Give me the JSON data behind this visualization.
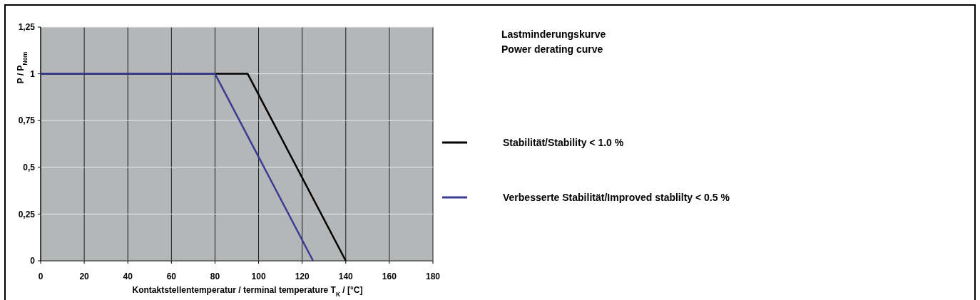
{
  "chart_data": {
    "type": "line",
    "title": "Lastminderungskurve",
    "subtitle": "Power derating curve",
    "xlabel": "Kontaktstellentemperatur / terminal temperature T$_{K}$ / [°C]",
    "ylabel": "P / P$_{Nom}$",
    "xlim": [
      0,
      180
    ],
    "xticks": [
      0,
      20,
      40,
      60,
      80,
      100,
      120,
      140,
      160,
      180
    ],
    "ylim": [
      0,
      1.25
    ],
    "yticks": [
      0,
      {
        "value": 0.25,
        "label": "0,25"
      },
      {
        "value": 0.5,
        "label": "0,5"
      },
      {
        "value": 0.75,
        "label": "0,75"
      },
      1,
      {
        "value": 1.25,
        "label": "1,25"
      }
    ],
    "grid": true,
    "legend": "right",
    "line_style": "solid",
    "marker": "none",
    "series": [
      {
        "name": "Stabilität/Stability < 1.0 %",
        "color": "#000000",
        "x": [
          0,
          95,
          140
        ],
        "values": [
          1,
          1,
          0
        ]
      },
      {
        "name": "Verbesserte Stabilität/Improved stablilty < 0.5 %",
        "color": "#3c3c96",
        "x": [
          0,
          80,
          125
        ],
        "values": [
          1,
          1,
          0
        ]
      }
    ]
  }
}
